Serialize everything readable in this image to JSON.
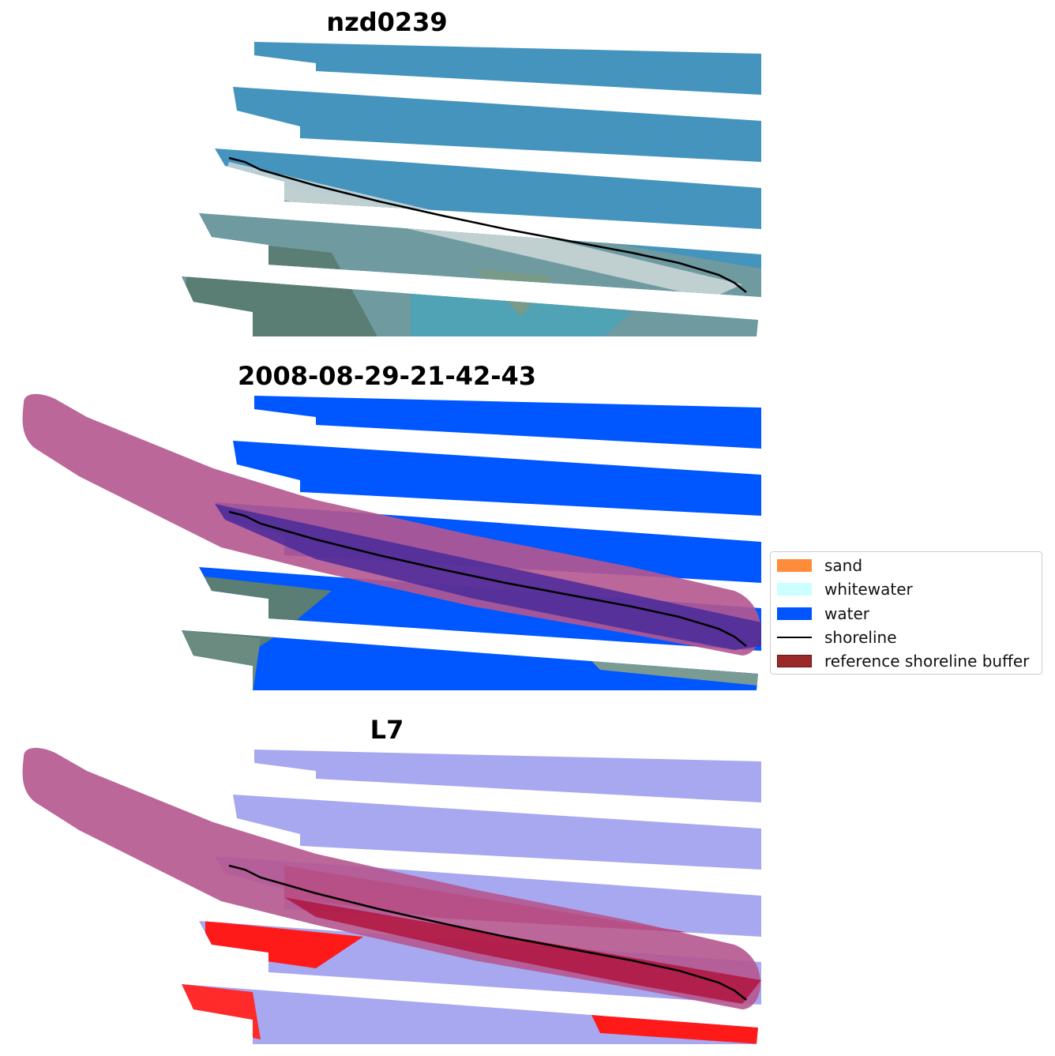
{
  "panels": [
    {
      "id": "rgb",
      "title": "nzd0239"
    },
    {
      "id": "classified",
      "title": "2008-08-29-21-42-43"
    },
    {
      "id": "mndwi",
      "title": "L7"
    }
  ],
  "legend": {
    "items": [
      {
        "label": "sand",
        "color": "#ff8c3a",
        "kind": "patch"
      },
      {
        "label": "whitewater",
        "color": "#ccffff",
        "kind": "patch"
      },
      {
        "label": "water",
        "color": "#0055ff",
        "kind": "patch"
      },
      {
        "label": "shoreline",
        "color": "#000000",
        "kind": "line"
      },
      {
        "label": "reference shoreline buffer",
        "color": "#9a2a2a",
        "kind": "patch"
      }
    ]
  },
  "colors": {
    "ocean_rgb": "#4494be",
    "water_class": "#0057ff",
    "buffer": "#b5578f",
    "index_water": "#a8a8f0",
    "index_land": "#ff1a1a"
  }
}
